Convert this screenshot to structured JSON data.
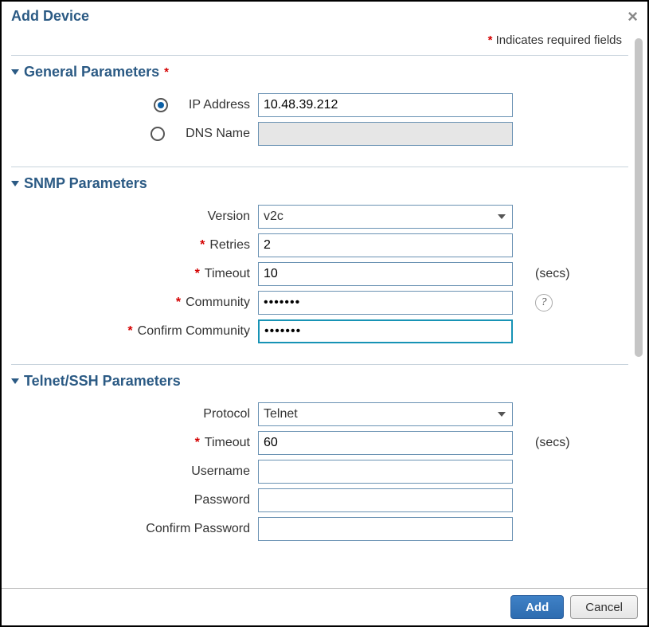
{
  "dialog": {
    "title": "Add Device",
    "required_note_prefix": "*",
    "required_note_text": " Indicates required fields"
  },
  "sections": {
    "general": {
      "title": "General Parameters",
      "title_required": "*",
      "ip_radio_label": "IP Address",
      "ip_value": "10.48.39.212",
      "dns_radio_label": "DNS Name",
      "dns_value": ""
    },
    "snmp": {
      "title": "SNMP Parameters",
      "version_label": "Version",
      "version_value": "v2c",
      "retries_label": "Retries",
      "retries_value": "2",
      "timeout_label": "Timeout",
      "timeout_value": "10",
      "timeout_suffix": "(secs)",
      "community_label": "Community",
      "community_value": "•••••••",
      "confirm_community_label": "Confirm Community",
      "confirm_community_value": "•••••••"
    },
    "telnet": {
      "title": "Telnet/SSH Parameters",
      "protocol_label": "Protocol",
      "protocol_value": "Telnet",
      "timeout_label": "Timeout",
      "timeout_value": "60",
      "timeout_suffix": "(secs)",
      "username_label": "Username",
      "username_value": "",
      "password_label": "Password",
      "password_value": "",
      "confirm_password_label": "Confirm Password",
      "confirm_password_value": ""
    }
  },
  "footer": {
    "add_label": "Add",
    "cancel_label": "Cancel"
  },
  "colors": {
    "heading": "#2b5a84",
    "required": "#d40000",
    "border": "#6a92b3",
    "focus_border": "#1793b5",
    "primary_btn": "#2e6cb0"
  }
}
